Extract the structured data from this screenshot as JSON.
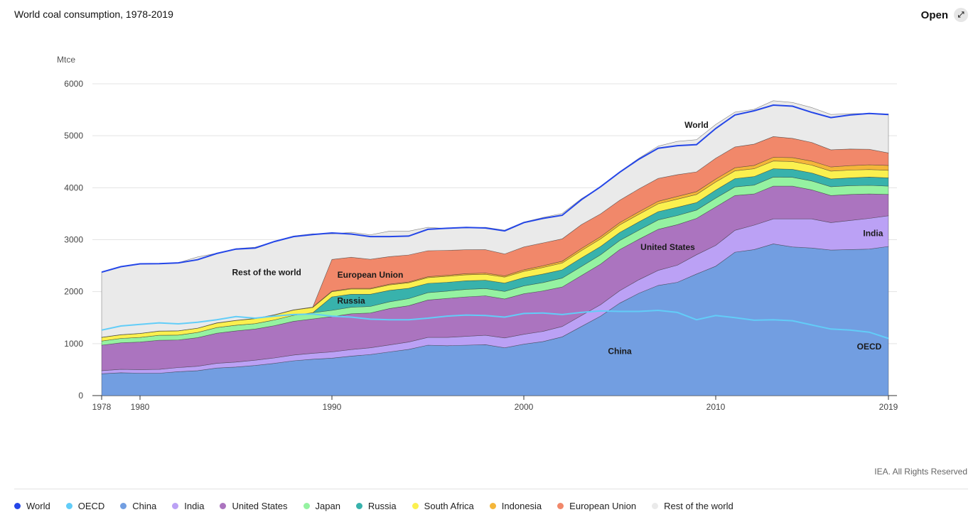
{
  "header": {
    "title": "World coal consumption, 1978-2019",
    "open_label": "Open",
    "open_icon": "expand-arrows-icon"
  },
  "footer": {
    "credit": "IEA. All Rights Reserved"
  },
  "colors": {
    "World": "#2446e8",
    "OECD": "#62cdf8",
    "China": "#729ee1",
    "India": "#bba1f5",
    "United States": "#ab74bf",
    "Japan": "#95f2a1",
    "Russia": "#38b2ac",
    "South Africa": "#fbf04f",
    "Indonesia": "#f4b63a",
    "European Union": "#f1886a",
    "Rest of the world": "#eaeaea"
  },
  "legend": [
    "World",
    "OECD",
    "China",
    "India",
    "United States",
    "Japan",
    "Russia",
    "South Africa",
    "Indonesia",
    "European Union",
    "Rest of the world"
  ],
  "chart_data": {
    "type": "area",
    "title": "World coal consumption, 1978-2019",
    "ylabel": "Mtce",
    "ylim": [
      0,
      6000
    ],
    "yticks": [
      0,
      1000,
      2000,
      3000,
      4000,
      5000,
      6000
    ],
    "xlim": [
      1978,
      2019
    ],
    "xticks": [
      1978,
      1980,
      1990,
      2000,
      2010,
      2019
    ],
    "grid": true,
    "legend_position": "bottom",
    "area_labels": [
      {
        "text": "World",
        "x": 2009,
        "y": 5150
      },
      {
        "text": "Rest of the world",
        "x": 1986.6,
        "y": 2320
      },
      {
        "text": "European Union",
        "x": 1992,
        "y": 2270
      },
      {
        "text": "Russia",
        "x": 1991,
        "y": 1770
      },
      {
        "text": "United States",
        "x": 2007.5,
        "y": 2800
      },
      {
        "text": "India",
        "x": 2018.2,
        "y": 3070
      },
      {
        "text": "China",
        "x": 2005,
        "y": 800
      },
      {
        "text": "OECD",
        "x": 2018,
        "y": 890
      }
    ],
    "x": [
      1978,
      1979,
      1980,
      1981,
      1982,
      1983,
      1984,
      1985,
      1986,
      1987,
      1988,
      1989,
      1990,
      1991,
      1992,
      1993,
      1994,
      1995,
      1996,
      1997,
      1998,
      1999,
      2000,
      2001,
      2002,
      2003,
      2004,
      2005,
      2006,
      2007,
      2008,
      2009,
      2010,
      2011,
      2012,
      2013,
      2014,
      2015,
      2016,
      2017,
      2018,
      2019
    ],
    "stack_order": [
      "China",
      "India",
      "United States",
      "Japan",
      "Russia",
      "South Africa",
      "Indonesia",
      "European Union",
      "Rest of the world"
    ],
    "series": [
      {
        "name": "China",
        "values": [
          420,
          440,
          430,
          430,
          460,
          480,
          530,
          550,
          580,
          620,
          670,
          700,
          720,
          760,
          790,
          840,
          890,
          970,
          960,
          970,
          980,
          920,
          990,
          1040,
          1130,
          1330,
          1530,
          1780,
          1970,
          2120,
          2180,
          2340,
          2490,
          2760,
          2810,
          2920,
          2860,
          2840,
          2800,
          2810,
          2820,
          2870
        ]
      },
      {
        "name": "India",
        "values": [
          60,
          65,
          70,
          75,
          80,
          85,
          90,
          95,
          100,
          105,
          110,
          115,
          120,
          125,
          130,
          135,
          140,
          150,
          160,
          170,
          180,
          190,
          190,
          195,
          200,
          210,
          220,
          240,
          260,
          290,
          330,
          370,
          400,
          420,
          470,
          480,
          540,
          560,
          530,
          560,
          590,
          590
        ]
      },
      {
        "name": "United States",
        "values": [
          490,
          510,
          530,
          560,
          530,
          550,
          580,
          600,
          600,
          620,
          650,
          660,
          680,
          690,
          670,
          700,
          700,
          720,
          750,
          760,
          760,
          750,
          780,
          780,
          760,
          770,
          780,
          790,
          780,
          790,
          780,
          700,
          740,
          670,
          600,
          630,
          630,
          560,
          520,
          500,
          470,
          410
        ]
      },
      {
        "name": "Japan",
        "values": [
          80,
          85,
          90,
          95,
          95,
          100,
          110,
          110,
          105,
          110,
          115,
          120,
          120,
          125,
          125,
          130,
          135,
          140,
          140,
          145,
          140,
          145,
          150,
          160,
          170,
          175,
          180,
          175,
          175,
          180,
          175,
          160,
          170,
          165,
          170,
          175,
          170,
          170,
          170,
          170,
          165,
          160
        ]
      },
      {
        "name": "Russia",
        "values": [
          0,
          0,
          0,
          0,
          0,
          0,
          0,
          0,
          0,
          0,
          0,
          0,
          260,
          250,
          235,
          220,
          200,
          180,
          170,
          165,
          160,
          160,
          160,
          165,
          160,
          165,
          160,
          155,
          160,
          160,
          160,
          145,
          155,
          160,
          165,
          160,
          155,
          155,
          150,
          150,
          160,
          160
        ]
      },
      {
        "name": "South Africa",
        "values": [
          70,
          70,
          75,
          80,
          80,
          80,
          85,
          90,
          95,
          95,
          100,
          100,
          100,
          100,
          100,
          105,
          105,
          110,
          115,
          115,
          115,
          115,
          120,
          125,
          130,
          140,
          145,
          145,
          145,
          150,
          155,
          155,
          155,
          150,
          150,
          150,
          150,
          150,
          150,
          150,
          145,
          145
        ]
      },
      {
        "name": "Indonesia",
        "values": [
          2,
          2,
          2,
          3,
          3,
          3,
          4,
          4,
          5,
          5,
          6,
          8,
          10,
          12,
          13,
          15,
          16,
          18,
          20,
          22,
          23,
          25,
          30,
          33,
          36,
          40,
          42,
          45,
          48,
          50,
          52,
          55,
          57,
          60,
          65,
          70,
          75,
          78,
          80,
          85,
          90,
          95
        ]
      },
      {
        "name": "European Union",
        "values": [
          0,
          0,
          0,
          0,
          0,
          0,
          0,
          0,
          0,
          0,
          0,
          0,
          610,
          600,
          560,
          530,
          520,
          500,
          480,
          460,
          450,
          420,
          440,
          440,
          430,
          460,
          440,
          430,
          440,
          440,
          420,
          380,
          400,
          400,
          410,
          400,
          370,
          360,
          330,
          320,
          300,
          240
        ]
      },
      {
        "name": "Rest of the world",
        "values": [
          1250,
          1310,
          1340,
          1300,
          1310,
          1370,
          1340,
          1380,
          1370,
          1410,
          1420,
          1410,
          490,
          480,
          470,
          490,
          460,
          450,
          420,
          420,
          430,
          460,
          480,
          490,
          490,
          500,
          520,
          550,
          590,
          620,
          640,
          620,
          650,
          670,
          670,
          690,
          690,
          670,
          680,
          680,
          690,
          750
        ]
      },
      {
        "name": "World",
        "values": [
          2375,
          2480,
          2535,
          2540,
          2555,
          2615,
          2735,
          2820,
          2840,
          2965,
          3060,
          3100,
          3130,
          3110,
          3060,
          3060,
          3070,
          3200,
          3220,
          3235,
          3225,
          3170,
          3330,
          3410,
          3470,
          3770,
          4020,
          4300,
          4550,
          4760,
          4810,
          4830,
          5140,
          5400,
          5480,
          5590,
          5570,
          5450,
          5350,
          5400,
          5430,
          5410
        ]
      },
      {
        "name": "OECD",
        "values": [
          1260,
          1340,
          1370,
          1400,
          1380,
          1410,
          1460,
          1520,
          1490,
          1530,
          1560,
          1570,
          1530,
          1510,
          1470,
          1460,
          1460,
          1490,
          1530,
          1550,
          1540,
          1510,
          1580,
          1590,
          1560,
          1600,
          1630,
          1620,
          1620,
          1640,
          1600,
          1460,
          1540,
          1500,
          1450,
          1460,
          1440,
          1360,
          1280,
          1260,
          1220,
          1100
        ]
      }
    ]
  }
}
